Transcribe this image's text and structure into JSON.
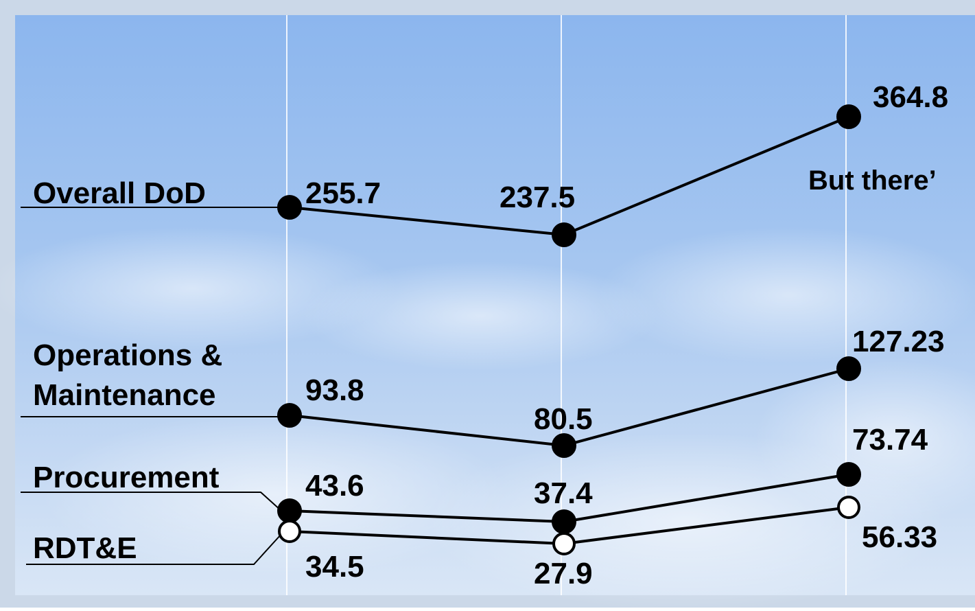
{
  "chart_data": {
    "type": "line",
    "title": "",
    "xlabel": "",
    "ylabel": "",
    "grid": true,
    "series": [
      {
        "name": "Overall DoD",
        "values": [
          255.7,
          237.5,
          364.8
        ],
        "labels": [
          "255.7",
          "237.5",
          "364.8"
        ],
        "marker_fill": "#000000"
      },
      {
        "name": "Operations & Maintenance",
        "values": [
          93.8,
          80.5,
          127.23
        ],
        "labels": [
          "93.8",
          "80.5",
          "127.23"
        ],
        "marker_fill": "#000000"
      },
      {
        "name": "Procurement",
        "values": [
          43.6,
          37.4,
          73.74
        ],
        "labels": [
          "43.6",
          "37.4",
          "73.74"
        ],
        "marker_fill": "#000000"
      },
      {
        "name": "RDT&E",
        "values": [
          34.5,
          27.9,
          56.33
        ],
        "labels": [
          "34.5",
          "27.9",
          "56.33"
        ],
        "marker_fill": "#ffffff"
      }
    ],
    "annotation": "But there’",
    "colors": {
      "line": "#000000",
      "grid": "#ffffff",
      "sky_top": "#8fb8ec",
      "sky_bottom": "#d6e4f6",
      "frame": "#c9d6e6"
    }
  }
}
